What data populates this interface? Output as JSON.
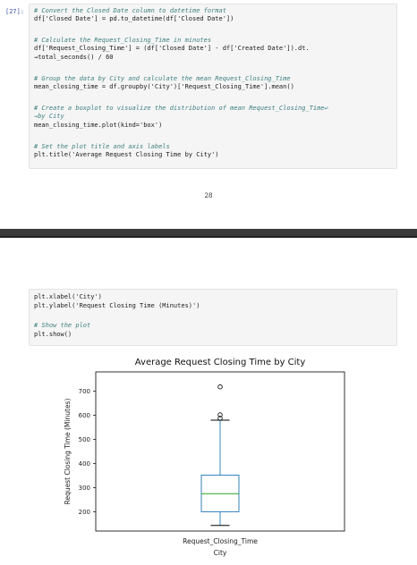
{
  "cell_1": {
    "prompt": "[27]:",
    "lines": [
      "# Convert the Closed Date column to datetime format",
      "df['Closed Date'] = pd.to_datetime(df['Closed Date'])",
      "",
      "# Calculate the Request_Closing_Time in minutes",
      "df['Request_Closing_Time'] = (df['Closed Date'] - df['Created Date']).dt.",
      "→total_seconds() / 60",
      "",
      "# Group the data by City and calculate the mean Request_Closing_Time",
      "mean_closing_time = df.groupby('City')['Request_Closing_Time'].mean()",
      "",
      "# Create a boxplot to visualize the distribution of mean Request_Closing_Time↩",
      "→by City",
      "mean_closing_time.plot(kind='box')",
      "",
      "# Set the plot title and axis labels",
      "plt.title('Average Request Closing Time by City')"
    ]
  },
  "page_number": "28",
  "cell_2": {
    "lines": [
      "plt.xlabel('City')",
      "plt.ylabel('Request Closing Time (Minutes)')",
      "",
      "# Show the plot",
      "plt.show()"
    ]
  },
  "chart_data": {
    "type": "box",
    "title": "Average Request Closing Time by City",
    "xlabel": "City",
    "ylabel": "Request Closing Time (Minutes)",
    "categories": [
      "Request_Closing_Time"
    ],
    "ylim": [
      120,
      780
    ],
    "yticks": [
      200,
      300,
      400,
      500,
      600,
      700
    ],
    "box": {
      "whisker_low": 143,
      "q1": 200,
      "median": 275,
      "q3": 352,
      "whisker_high": 580
    },
    "outliers": [
      588,
      602,
      718
    ],
    "colors": {
      "box": "#1f77b4",
      "median": "#2ca02c",
      "whisker_cap": "#000000",
      "frame": "#000000",
      "outlier_edge": "#000000"
    },
    "grid": false
  }
}
